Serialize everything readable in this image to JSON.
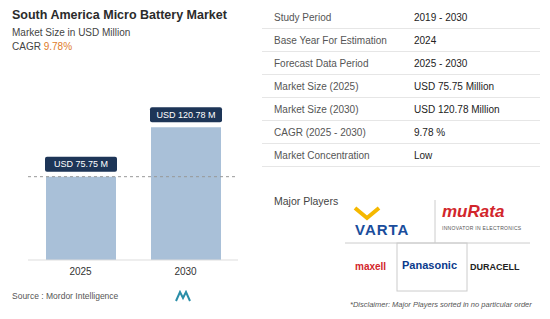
{
  "chart_data": {
    "type": "bar",
    "title": "South America Micro Battery Market",
    "subtitle": "Market Size in USD Million",
    "categories": [
      "2025",
      "2030"
    ],
    "values": [
      75.75,
      120.78
    ],
    "value_labels": [
      "USD 75.75 M",
      "USD 120.78 M"
    ],
    "data_labels": true,
    "color": "#a9c0d8",
    "ylim": [
      0,
      150
    ],
    "tick_labels": "x",
    "grid": false
  },
  "cagr": {
    "label": "CAGR",
    "value": "9.78%"
  },
  "source": {
    "label": "Source :",
    "name": "Mordor Intelligence"
  },
  "table": {
    "rows": [
      [
        "Study Period",
        "2019 - 2030"
      ],
      [
        "Base Year For Estimation",
        "2024"
      ],
      [
        "Forecast Data Period",
        "2025 - 2030"
      ],
      [
        "Market Size (2025)",
        "USD 75.75 Million"
      ],
      [
        "Market Size (2030)",
        "USD 120.78 Million"
      ],
      [
        "CAGR (2025 - 2030)",
        "9.78 %"
      ],
      [
        "Market Concentration",
        "Low"
      ]
    ]
  },
  "players": {
    "title": "Major Players",
    "names": [
      "VARTA",
      "muRata",
      "maxell",
      "Panasonic",
      "DURACELL"
    ],
    "murata_tagline": "INNOVATOR IN ELECTRONICS",
    "disclaimer": "*Disclaimer: Major Players sorted in no particular order"
  }
}
